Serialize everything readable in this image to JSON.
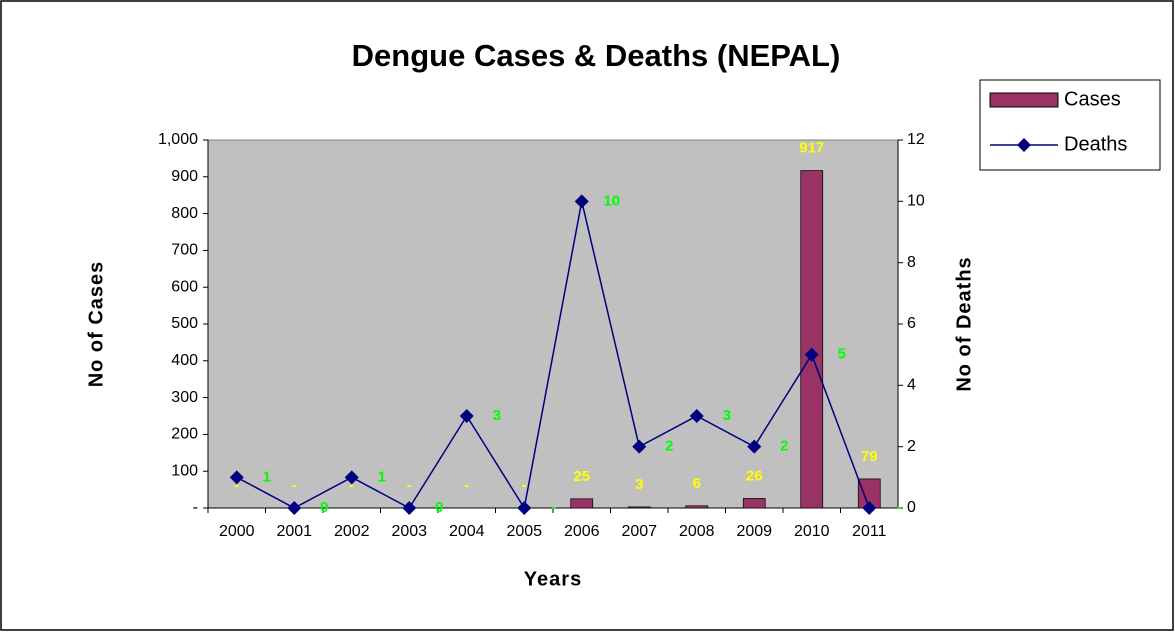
{
  "chart_data": {
    "type": "bar_line",
    "title": "Dengue Cases & Deaths (NEPAL)",
    "x_label": "Years",
    "y_label": "No of Cases",
    "y2_label": "No of Deaths",
    "categories": [
      "2000",
      "2001",
      "2002",
      "2003",
      "2004",
      "2005",
      "2006",
      "2007",
      "2008",
      "2009",
      "2010",
      "2011"
    ],
    "series": [
      {
        "name": "Cases",
        "type": "bar",
        "color": "#993366",
        "label_color": "#ffff00",
        "values": [
          0,
          0,
          0,
          0,
          0,
          0,
          25,
          3,
          6,
          26,
          917,
          79
        ],
        "value_labels": [
          "-",
          "-",
          "-",
          "-",
          "-",
          "-",
          "25",
          "3",
          "6",
          "26",
          "917",
          "79"
        ]
      },
      {
        "name": "Deaths",
        "type": "line",
        "axis": "y2",
        "color": "#000080",
        "label_color": "#00ff00",
        "values": [
          1,
          0,
          1,
          0,
          3,
          0,
          10,
          2,
          3,
          2,
          5,
          0
        ],
        "value_labels": [
          "1",
          "0",
          "1",
          "0",
          "3",
          "-",
          "10",
          "2",
          "3",
          "2",
          "5",
          "-"
        ]
      }
    ],
    "ylim": [
      0,
      1000
    ],
    "yticks": [
      {
        "value": 0,
        "label": "-"
      },
      100,
      200,
      300,
      400,
      500,
      600,
      700,
      800,
      900,
      {
        "value": 1000,
        "label": "1,000"
      }
    ],
    "y2lim": [
      0,
      12
    ],
    "y2ticks": [
      0,
      2,
      4,
      6,
      8,
      10,
      12
    ],
    "grid": false,
    "legend": "right",
    "plot_background": "#c0c0c0"
  }
}
